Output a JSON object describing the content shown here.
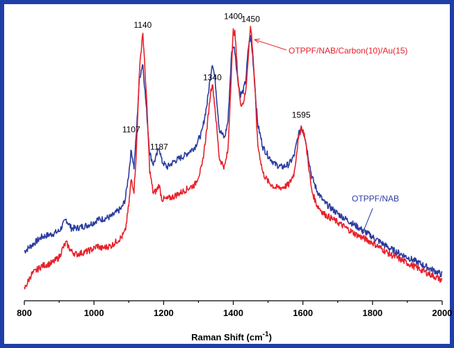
{
  "chart_data": {
    "type": "line",
    "xlabel_main": "Raman Shift (cm",
    "xlabel_sup": "-1",
    "xlabel_end": ")",
    "xlim": [
      800,
      2000
    ],
    "ylim": [
      0,
      100
    ],
    "x_ticks": [
      "800",
      "1000",
      "1200",
      "1400",
      "1600",
      "1800",
      "2000"
    ],
    "peak_labels": [
      {
        "x": 1107,
        "text": "1107",
        "y": 58
      },
      {
        "x": 1140,
        "text": "1140",
        "y": 94
      },
      {
        "x": 1187,
        "text": "1187",
        "y": 52
      },
      {
        "x": 1340,
        "text": "1340",
        "y": 76
      },
      {
        "x": 1400,
        "text": "1400",
        "y": 97
      },
      {
        "x": 1450,
        "text": "1450",
        "y": 96
      },
      {
        "x": 1595,
        "text": "1595",
        "y": 63
      }
    ],
    "series": [
      {
        "name": "OTPPF/NAB/Carbon(10)/Au(15)",
        "color": "#e8202a",
        "x": [
          800,
          820,
          850,
          880,
          900,
          910,
          920,
          935,
          950,
          980,
          1000,
          1010,
          1020,
          1050,
          1080,
          1090,
          1100,
          1107,
          1115,
          1122,
          1130,
          1140,
          1150,
          1160,
          1170,
          1180,
          1187,
          1195,
          1210,
          1230,
          1260,
          1290,
          1310,
          1325,
          1335,
          1340,
          1348,
          1360,
          1375,
          1385,
          1395,
          1400,
          1405,
          1412,
          1420,
          1428,
          1436,
          1444,
          1450,
          1456,
          1462,
          1470,
          1485,
          1500,
          1520,
          1540,
          1560,
          1575,
          1585,
          1595,
          1605,
          1615,
          1625,
          1640,
          1660,
          1700,
          1750,
          1800,
          1850,
          1900,
          1950,
          2000
        ],
        "values": [
          4,
          9,
          12,
          13,
          15,
          18,
          20,
          17,
          16,
          17,
          18,
          19,
          18,
          19,
          22,
          24,
          33,
          42,
          38,
          52,
          78,
          93,
          72,
          45,
          37,
          38,
          40,
          35,
          35,
          36,
          38,
          40,
          46,
          60,
          72,
          75,
          66,
          49,
          46,
          52,
          80,
          93,
          92,
          79,
          68,
          68,
          72,
          86,
          95,
          86,
          74,
          54,
          44,
          41,
          39,
          39,
          40,
          44,
          54,
          60,
          57,
          48,
          38,
          33,
          30,
          27,
          23,
          20,
          16,
          13,
          10,
          7
        ]
      },
      {
        "name": "OTPPF/NAB",
        "color": "#2b3b9e",
        "x": [
          800,
          820,
          850,
          880,
          900,
          910,
          920,
          935,
          950,
          980,
          1000,
          1010,
          1020,
          1050,
          1080,
          1090,
          1100,
          1107,
          1115,
          1122,
          1130,
          1140,
          1150,
          1160,
          1170,
          1180,
          1187,
          1195,
          1210,
          1230,
          1260,
          1290,
          1310,
          1325,
          1335,
          1340,
          1348,
          1360,
          1375,
          1385,
          1395,
          1400,
          1405,
          1412,
          1420,
          1428,
          1436,
          1444,
          1450,
          1456,
          1462,
          1470,
          1485,
          1500,
          1520,
          1540,
          1560,
          1575,
          1585,
          1595,
          1605,
          1615,
          1625,
          1640,
          1660,
          1700,
          1750,
          1800,
          1850,
          1900,
          1950,
          2000
        ],
        "values": [
          17,
          19,
          22,
          23,
          24,
          26,
          28,
          25,
          25,
          26,
          27,
          28,
          28,
          29,
          32,
          35,
          44,
          52,
          46,
          58,
          76,
          82,
          67,
          51,
          47,
          50,
          53,
          48,
          46,
          48,
          50,
          53,
          58,
          68,
          78,
          82,
          76,
          59,
          56,
          62,
          85,
          88,
          86,
          77,
          71,
          72,
          76,
          88,
          91,
          84,
          74,
          61,
          53,
          50,
          47,
          46,
          47,
          50,
          56,
          60,
          57,
          50,
          43,
          38,
          34,
          30,
          26,
          22,
          18,
          15,
          12,
          9
        ]
      }
    ],
    "annotations": [
      {
        "text": "OTPPF/NAB/Carbon(10)/Au(15)",
        "color": "#e8202a"
      },
      {
        "text": "OTPPF/NAB",
        "color": "#2b3b9e"
      }
    ]
  }
}
